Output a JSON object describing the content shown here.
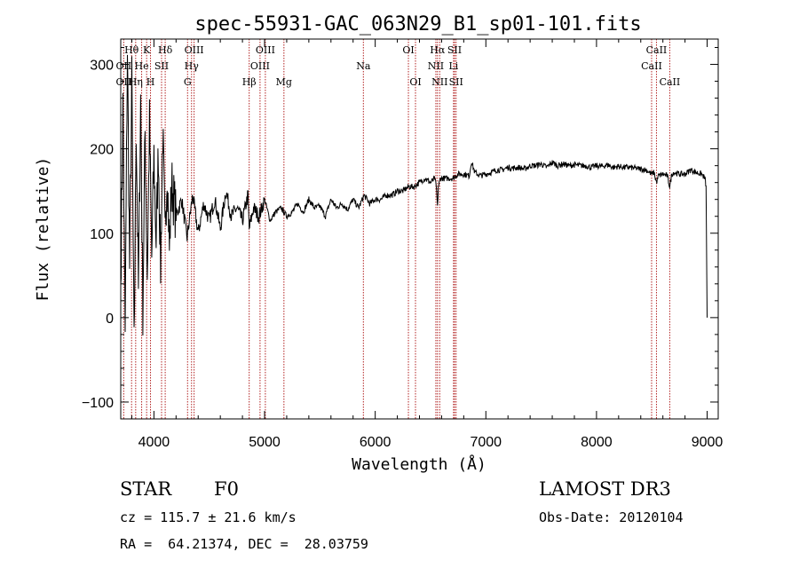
{
  "chart_data": {
    "type": "line",
    "title": "spec-55931-GAC_063N29_B1_sp01-101.fits",
    "xlabel": "Wavelength (Å)",
    "ylabel": "Flux (relative)",
    "xlim": [
      3700,
      9100
    ],
    "ylim": [
      -120,
      330
    ],
    "x_ticks": [
      4000,
      5000,
      6000,
      7000,
      8000,
      9000
    ],
    "x_tick_labels": [
      "4000",
      "5000",
      "6000",
      "7000",
      "8000",
      "9000"
    ],
    "y_ticks": [
      -100,
      0,
      100,
      200,
      300
    ],
    "y_tick_labels": [
      "−100",
      "0",
      "100",
      "200",
      "300"
    ],
    "series": [
      {
        "name": "flux",
        "x": [
          3700,
          3720,
          3740,
          3760,
          3780,
          3800,
          3820,
          3840,
          3860,
          3880,
          3900,
          3920,
          3940,
          3960,
          3980,
          4000,
          4020,
          4040,
          4060,
          4080,
          4100,
          4120,
          4140,
          4160,
          4200,
          4250,
          4300,
          4350,
          4400,
          4450,
          4500,
          4550,
          4600,
          4650,
          4700,
          4750,
          4800,
          4850,
          4861,
          4900,
          4950,
          5000,
          5050,
          5100,
          5150,
          5200,
          5250,
          5300,
          5350,
          5400,
          5450,
          5500,
          5550,
          5600,
          5650,
          5700,
          5750,
          5800,
          5850,
          5900,
          5950,
          6000,
          6050,
          6100,
          6150,
          6200,
          6250,
          6300,
          6350,
          6400,
          6450,
          6500,
          6540,
          6555,
          6563,
          6570,
          6590,
          6650,
          6700,
          6750,
          6800,
          6850,
          6870,
          6900,
          6950,
          7000,
          7050,
          7100,
          7150,
          7200,
          7250,
          7300,
          7350,
          7400,
          7450,
          7500,
          7550,
          7600,
          7650,
          7700,
          7750,
          7800,
          7850,
          7900,
          7950,
          8000,
          8050,
          8100,
          8150,
          8200,
          8250,
          8300,
          8350,
          8400,
          8450,
          8498,
          8520,
          8542,
          8560,
          8600,
          8640,
          8662,
          8680,
          8700,
          8750,
          8800,
          8850,
          8900,
          8950,
          8980,
          8990,
          9000
        ],
        "y": [
          40,
          250,
          -20,
          320,
          60,
          280,
          -40,
          230,
          30,
          260,
          10,
          220,
          50,
          230,
          70,
          190,
          90,
          200,
          60,
          220,
          90,
          180,
          80,
          160,
          120,
          140,
          95,
          145,
          100,
          135,
          115,
          140,
          105,
          150,
          120,
          130,
          115,
          145,
          105,
          130,
          120,
          140,
          115,
          125,
          130,
          120,
          125,
          135,
          125,
          140,
          130,
          132,
          120,
          140,
          130,
          135,
          128,
          140,
          130,
          145,
          135,
          140,
          140,
          145,
          145,
          150,
          150,
          155,
          155,
          160,
          165,
          160,
          165,
          150,
          130,
          155,
          165,
          165,
          165,
          170,
          170,
          168,
          185,
          172,
          168,
          170,
          172,
          175,
          175,
          178,
          177,
          178,
          176,
          180,
          180,
          182,
          178,
          184,
          180,
          182,
          180,
          181,
          180,
          180,
          178,
          180,
          179,
          181,
          178,
          179,
          178,
          178,
          177,
          176,
          175,
          170,
          172,
          160,
          168,
          170,
          168,
          155,
          170,
          172,
          170,
          170,
          175,
          172,
          170,
          165,
          155,
          0
        ]
      }
    ],
    "line_groups": [
      {
        "label": "Hθ",
        "row": 1,
        "x": 3798
      },
      {
        "label": "K",
        "row": 1,
        "x": 3934
      },
      {
        "label": "Hδ",
        "row": 1,
        "x": 4102
      },
      {
        "label": "OIII",
        "row": 1,
        "x": 4363
      },
      {
        "label": "OIII",
        "row": 1,
        "x": 5007
      },
      {
        "label": "OI",
        "row": 1,
        "x": 6300
      },
      {
        "label": "Hα",
        "row": 1,
        "x": 6563
      },
      {
        "label": "SII",
        "row": 1,
        "x": 6717
      },
      {
        "label": "CaII",
        "row": 1,
        "x": 8542
      },
      {
        "label": "OII",
        "row": 2,
        "x": 3727
      },
      {
        "label": "He",
        "row": 2,
        "x": 3889
      },
      {
        "label": "SII",
        "row": 2,
        "x": 4069
      },
      {
        "label": "Hγ",
        "row": 2,
        "x": 4340
      },
      {
        "label": "OIII",
        "row": 2,
        "x": 4959
      },
      {
        "label": "Na",
        "row": 2,
        "x": 5893
      },
      {
        "label": "NII",
        "row": 2,
        "x": 6548
      },
      {
        "label": "Li",
        "row": 2,
        "x": 6708
      },
      {
        "label": "CaII",
        "row": 2,
        "x": 8498
      },
      {
        "label": "OII",
        "row": 3,
        "x": 3727
      },
      {
        "label": "Hη",
        "row": 3,
        "x": 3835
      },
      {
        "label": "H",
        "row": 3,
        "x": 3969
      },
      {
        "label": "G",
        "row": 3,
        "x": 4304
      },
      {
        "label": "Hβ",
        "row": 3,
        "x": 4861
      },
      {
        "label": "Mg",
        "row": 3,
        "x": 5175
      },
      {
        "label": "OI",
        "row": 3,
        "x": 6364
      },
      {
        "label": "NII",
        "row": 3,
        "x": 6583
      },
      {
        "label": "SII",
        "row": 3,
        "x": 6731
      },
      {
        "label": "CaII",
        "row": 3,
        "x": 8662
      }
    ],
    "line_color": "#b22222"
  },
  "info": {
    "object_type": "STAR",
    "subclass": "F0",
    "survey": "LAMOST DR3",
    "redshift": "cz = 115.7 ± 21.6 km/s",
    "obs_date": "Obs-Date: 20120104",
    "coords": "RA =  64.21374, DEC =  28.03759"
  }
}
